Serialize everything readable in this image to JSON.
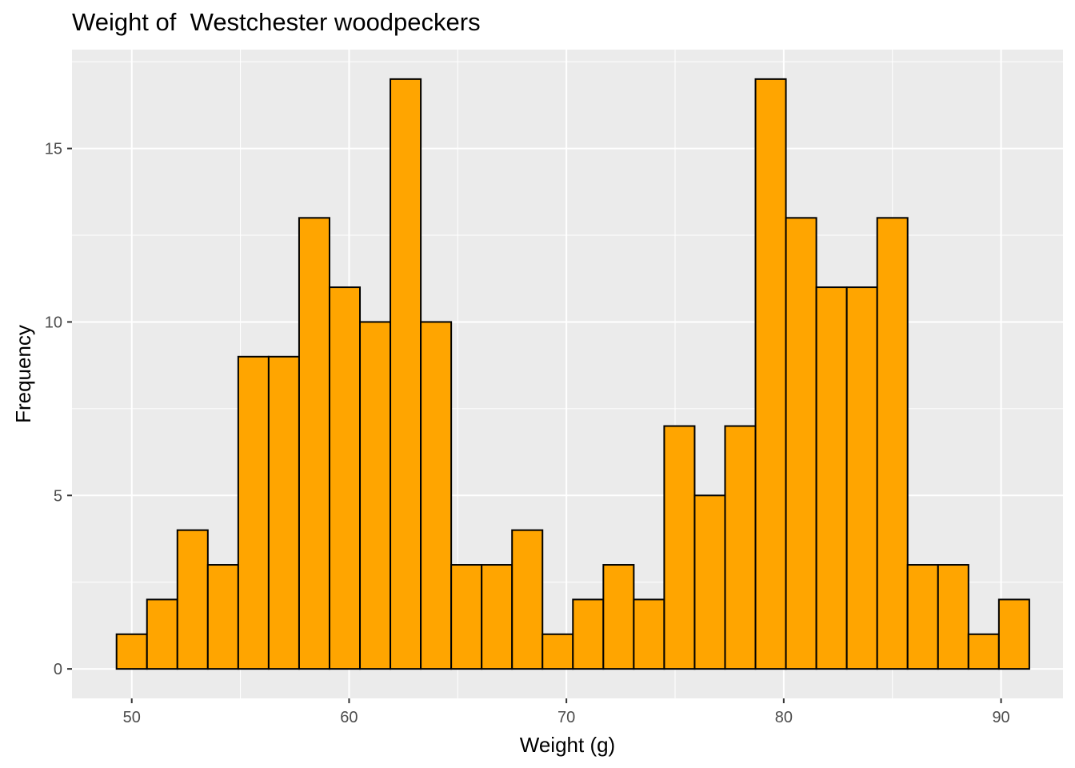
{
  "chart_data": {
    "type": "bar",
    "title": "Weight of  Westchester woodpeckers",
    "xlabel": "Weight (g)",
    "ylabel": "Frequency",
    "x_ticks": [
      50,
      60,
      70,
      80,
      90
    ],
    "y_ticks": [
      0,
      5,
      10,
      15
    ],
    "xlim": [
      47.25,
      92.85
    ],
    "ylim": [
      -0.85,
      17.85
    ],
    "bins": [
      {
        "x0": 49.3,
        "x1": 50.7,
        "count": 1
      },
      {
        "x0": 50.7,
        "x1": 52.1,
        "count": 2
      },
      {
        "x0": 52.1,
        "x1": 53.5,
        "count": 4
      },
      {
        "x0": 53.5,
        "x1": 54.9,
        "count": 3
      },
      {
        "x0": 54.9,
        "x1": 56.3,
        "count": 9
      },
      {
        "x0": 56.3,
        "x1": 57.7,
        "count": 9
      },
      {
        "x0": 57.7,
        "x1": 59.1,
        "count": 13
      },
      {
        "x0": 59.1,
        "x1": 60.5,
        "count": 11
      },
      {
        "x0": 60.5,
        "x1": 61.9,
        "count": 10
      },
      {
        "x0": 61.9,
        "x1": 63.3,
        "count": 17
      },
      {
        "x0": 63.3,
        "x1": 64.7,
        "count": 10
      },
      {
        "x0": 64.7,
        "x1": 66.1,
        "count": 3
      },
      {
        "x0": 66.1,
        "x1": 67.5,
        "count": 3
      },
      {
        "x0": 67.5,
        "x1": 68.9,
        "count": 4
      },
      {
        "x0": 68.9,
        "x1": 70.3,
        "count": 1
      },
      {
        "x0": 70.3,
        "x1": 71.7,
        "count": 2
      },
      {
        "x0": 71.7,
        "x1": 73.1,
        "count": 3
      },
      {
        "x0": 73.1,
        "x1": 74.5,
        "count": 2
      },
      {
        "x0": 74.5,
        "x1": 75.9,
        "count": 7
      },
      {
        "x0": 75.9,
        "x1": 77.3,
        "count": 5
      },
      {
        "x0": 77.3,
        "x1": 78.7,
        "count": 7
      },
      {
        "x0": 78.7,
        "x1": 80.1,
        "count": 17
      },
      {
        "x0": 80.1,
        "x1": 81.5,
        "count": 13
      },
      {
        "x0": 81.5,
        "x1": 82.9,
        "count": 11
      },
      {
        "x0": 82.9,
        "x1": 84.3,
        "count": 11
      },
      {
        "x0": 84.3,
        "x1": 85.7,
        "count": 13
      },
      {
        "x0": 85.7,
        "x1": 87.1,
        "count": 3
      },
      {
        "x0": 87.1,
        "x1": 88.5,
        "count": 3
      },
      {
        "x0": 88.5,
        "x1": 89.9,
        "count": 1
      },
      {
        "x0": 89.9,
        "x1": 91.3,
        "count": 2
      }
    ],
    "grid": true,
    "legend": "none",
    "colors": {
      "bar_fill": "#FFA500",
      "bar_outline": "#000000",
      "panel_background": "#EBEBEB",
      "grid_line": "#FFFFFF"
    }
  }
}
